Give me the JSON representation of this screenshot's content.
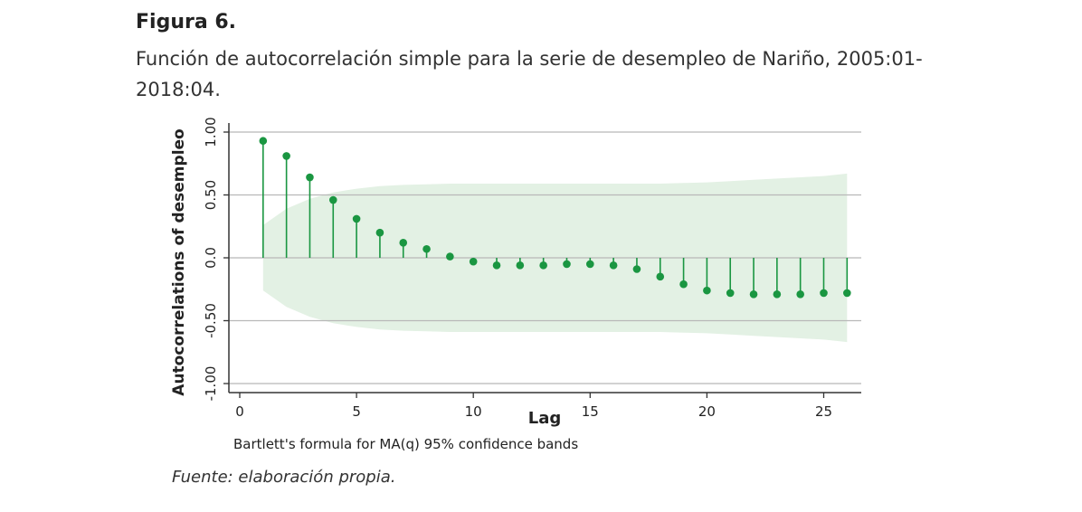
{
  "figure": {
    "label": "Figura 6.",
    "caption": "Función de autocorrelación simple para la serie de desempleo de Nariño, 2005:01-2018:04.",
    "source": "Fuente: elaboración propia."
  },
  "colors": {
    "stem": "#1a9641",
    "band": "#e3f1e4",
    "grid": "#b8b8b8",
    "axis": "#333333"
  },
  "chart_data": {
    "type": "scatter",
    "style": "stem plot with confidence band",
    "xlabel": "Lag",
    "ylabel": "Autocorrelations of desempleo",
    "note": "Bartlett's formula for MA(q) 95% confidence bands",
    "xlim": [
      0,
      26
    ],
    "ylim": [
      -1.0,
      1.0
    ],
    "x_ticks": [
      0,
      5,
      10,
      15,
      20,
      25
    ],
    "x_tick_labels": [
      "0",
      "5",
      "10",
      "15",
      "20",
      "25"
    ],
    "y_ticks": [
      -1.0,
      -0.5,
      0.0,
      0.5,
      1.0
    ],
    "y_tick_labels": [
      "-1.00",
      "-0.50",
      "0.0",
      "0.50",
      "1.00"
    ],
    "grid": true,
    "lags": [
      1,
      2,
      3,
      4,
      5,
      6,
      7,
      8,
      9,
      10,
      11,
      12,
      13,
      14,
      15,
      16,
      17,
      18,
      19,
      20,
      21,
      22,
      23,
      24,
      25,
      26
    ],
    "acf": [
      0.93,
      0.81,
      0.64,
      0.46,
      0.31,
      0.2,
      0.12,
      0.07,
      0.01,
      -0.03,
      -0.06,
      -0.06,
      -0.06,
      -0.05,
      -0.05,
      -0.06,
      -0.09,
      -0.15,
      -0.21,
      -0.26,
      -0.28,
      -0.29,
      -0.29,
      -0.29,
      -0.28,
      -0.28
    ],
    "band_upper": [
      0.26,
      0.39,
      0.47,
      0.52,
      0.55,
      0.57,
      0.58,
      0.585,
      0.59,
      0.59,
      0.59,
      0.59,
      0.59,
      0.59,
      0.59,
      0.59,
      0.59,
      0.59,
      0.595,
      0.6,
      0.61,
      0.62,
      0.63,
      0.64,
      0.65,
      0.67
    ]
  }
}
